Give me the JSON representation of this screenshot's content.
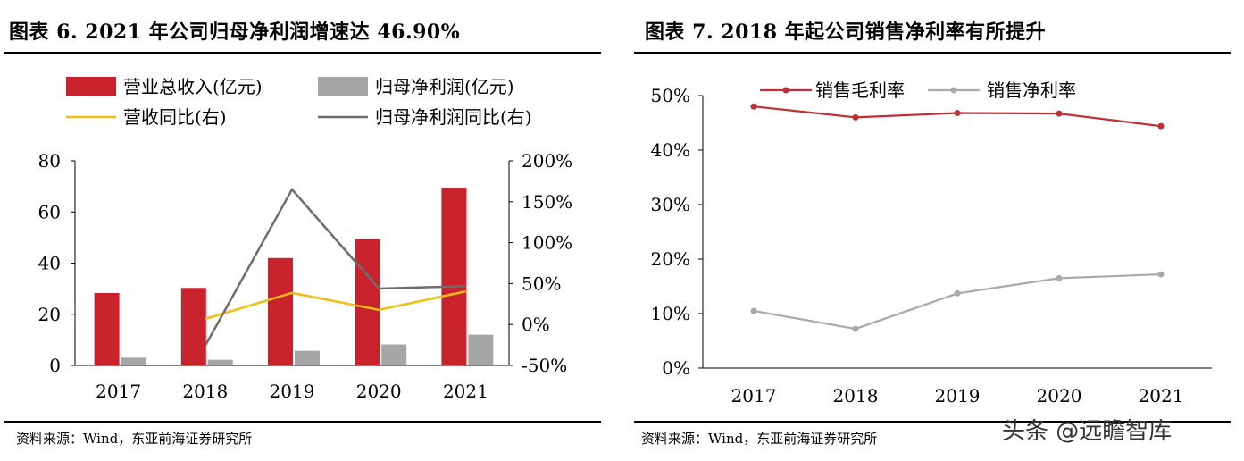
{
  "left_panel": {
    "title": "图表 6.  2021 年公司归母净利润增速达 46.90%",
    "source": "资料来源：Wind，东亚前海证券研究所"
  },
  "right_panel": {
    "title": "图表 7.  2018 年起公司销售净利率有所提升",
    "source": "资料来源：Wind，东亚前海证券研究所"
  },
  "watermark": "头条 @远瞻智库",
  "colors": {
    "revenue": "#c8222d",
    "net_profit": "#a6a6a6",
    "revenue_yoy": "#f2bd13",
    "profit_yoy": "#6d6d6d",
    "gross_margin": "#c02f36",
    "net_margin": "#a9a9a9"
  },
  "chart_data": [
    {
      "type": "bar",
      "categories": [
        "2017",
        "2018",
        "2019",
        "2020",
        "2021"
      ],
      "series": [
        {
          "name": "营业总收入(亿元)",
          "kind": "bar",
          "axis": "left",
          "values": [
            28.3,
            30.3,
            42.0,
            49.5,
            69.5
          ]
        },
        {
          "name": "归母净利润(亿元)",
          "kind": "bar",
          "axis": "left",
          "values": [
            3.0,
            2.2,
            5.7,
            8.2,
            12.0
          ]
        },
        {
          "name": "营收同比(右)",
          "kind": "line",
          "axis": "right",
          "values": [
            null,
            6.8,
            38.6,
            17.9,
            40.4
          ]
        },
        {
          "name": "归母净利润同比(右)",
          "kind": "line",
          "axis": "right",
          "values": [
            null,
            -26.0,
            165.0,
            43.9,
            46.9
          ]
        }
      ],
      "ylim": [
        0,
        80
      ],
      "yticks": [
        "0",
        "20",
        "40",
        "60",
        "80"
      ],
      "y2lim": [
        -50,
        200
      ],
      "y2ticks": [
        "-50%",
        "0%",
        "50%",
        "100%",
        "150%",
        "200%"
      ],
      "legend": "top",
      "title": "图表 6.  2021 年公司归母净利润增速达 46.90%"
    },
    {
      "type": "line",
      "categories": [
        "2017",
        "2018",
        "2019",
        "2020",
        "2021"
      ],
      "series": [
        {
          "name": "销售毛利率",
          "values": [
            48.0,
            46.0,
            46.8,
            46.7,
            44.4
          ]
        },
        {
          "name": "销售净利率",
          "values": [
            10.5,
            7.2,
            13.7,
            16.5,
            17.2
          ]
        }
      ],
      "ylim": [
        0,
        50
      ],
      "yticks": [
        "0%",
        "10%",
        "20%",
        "30%",
        "40%",
        "50%"
      ],
      "legend": "top-left",
      "title": "图表 7.  2018 年起公司销售净利率有所提升"
    }
  ]
}
